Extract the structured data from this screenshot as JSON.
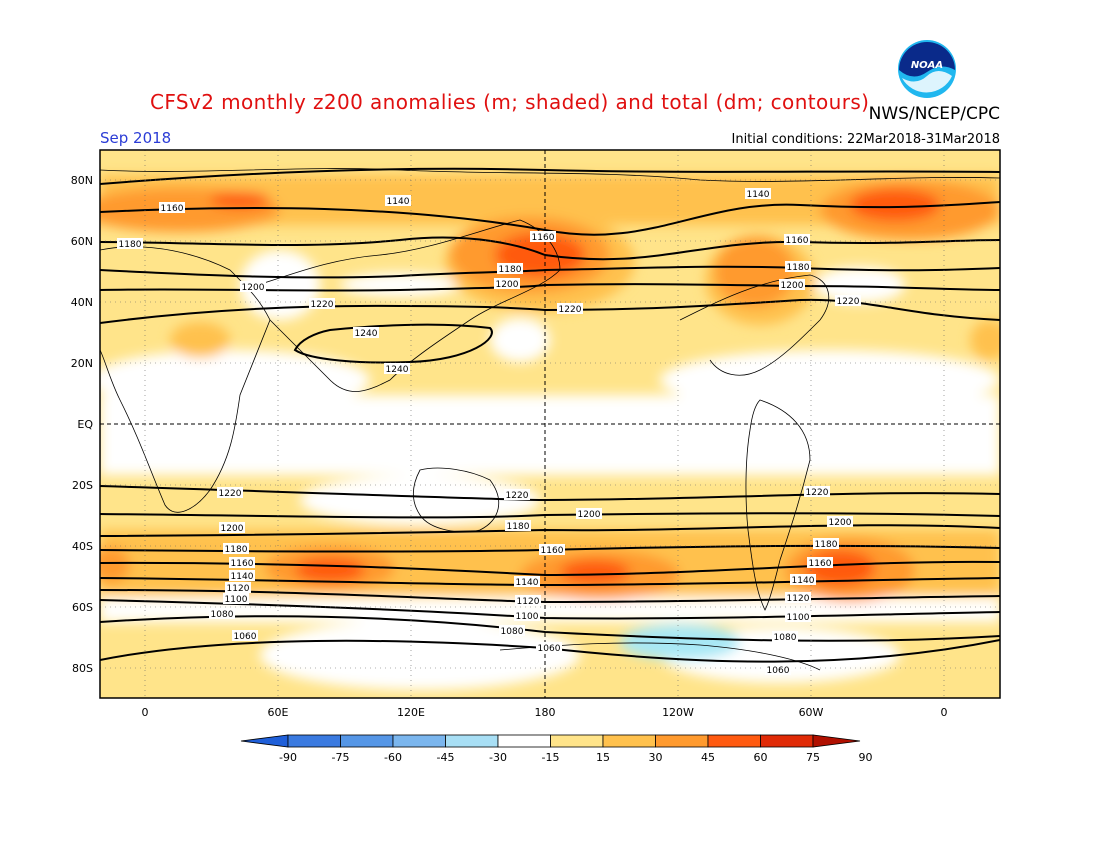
{
  "header": {
    "title": "CFSv2 monthly z200 anomalies (m; shaded) and total (dm; contours)",
    "agency": "NWS/NCEP/CPC",
    "month": "Sep 2018",
    "initial_conditions": "Initial conditions: 22Mar2018-31Mar2018",
    "logo_text": "NOAA"
  },
  "map": {
    "lat_labels": [
      "80N",
      "60N",
      "40N",
      "20N",
      "EQ",
      "20S",
      "40S",
      "60S",
      "80S"
    ],
    "lon_labels": [
      "0",
      "60E",
      "120E",
      "180",
      "120W",
      "60W",
      "0"
    ],
    "contour_labels": {
      "north": [
        "1140",
        "1160",
        "1180",
        "1200",
        "1220",
        "1240"
      ],
      "south": [
        "1220",
        "1200",
        "1180",
        "1160",
        "1140",
        "1120",
        "1100",
        "1080",
        "1060"
      ]
    }
  },
  "colorbar": {
    "labels": [
      "-90",
      "-75",
      "-60",
      "-45",
      "-30",
      "-15",
      "15",
      "30",
      "45",
      "60",
      "75",
      "90"
    ],
    "colors": [
      "#1f5fd9",
      "#3a7ae0",
      "#5596e6",
      "#7bb6ee",
      "#a8dff5",
      "#ffffff",
      "#ffe48a",
      "#ffc14d",
      "#ff9a2e",
      "#ff5a10",
      "#e02a06",
      "#b01000"
    ]
  }
}
